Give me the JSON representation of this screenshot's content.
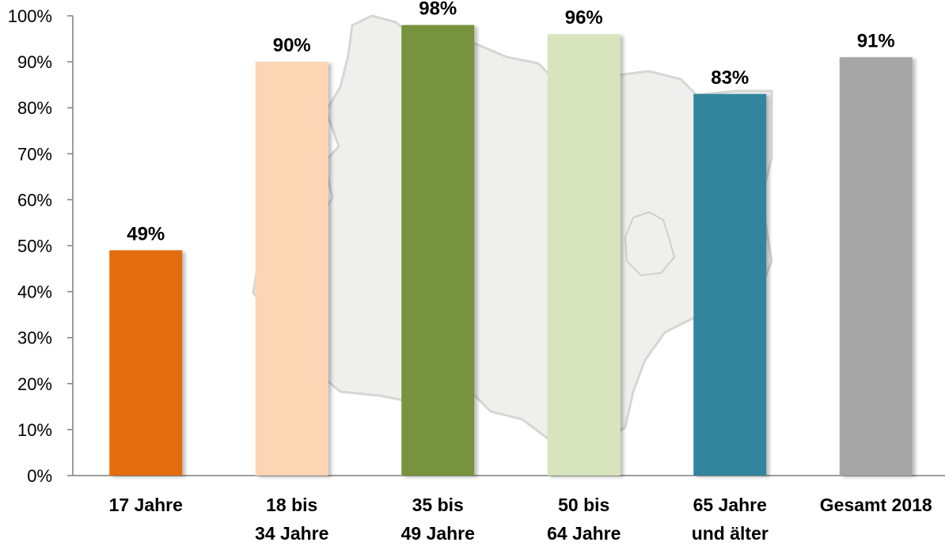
{
  "chart_data": {
    "type": "bar",
    "categories": [
      [
        "17 Jahre"
      ],
      [
        "18 bis",
        "34 Jahre"
      ],
      [
        "35 bis",
        "49 Jahre"
      ],
      [
        "50 bis",
        "64 Jahre"
      ],
      [
        "65 Jahre",
        "und älter"
      ],
      [
        "Gesamt 2018"
      ]
    ],
    "values": [
      49,
      90,
      98,
      96,
      83,
      91
    ],
    "data_labels": [
      "49%",
      "90%",
      "98%",
      "96%",
      "83%",
      "91%"
    ],
    "colors": [
      "#e36c0a",
      "#fcd5b5",
      "#77933c",
      "#d7e4bd",
      "#31859c",
      "#a6a6a6"
    ],
    "ylim": [
      0,
      100
    ],
    "yticks": [
      0,
      10,
      20,
      30,
      40,
      50,
      60,
      70,
      80,
      90,
      100
    ],
    "ytick_labels": [
      "0%",
      "10%",
      "20%",
      "30%",
      "40%",
      "50%",
      "60%",
      "70%",
      "80%",
      "90%",
      "100%"
    ],
    "title": "",
    "xlabel": "",
    "ylabel": "",
    "grid": false,
    "legend": "none",
    "background_decoration": "map-silhouette"
  }
}
